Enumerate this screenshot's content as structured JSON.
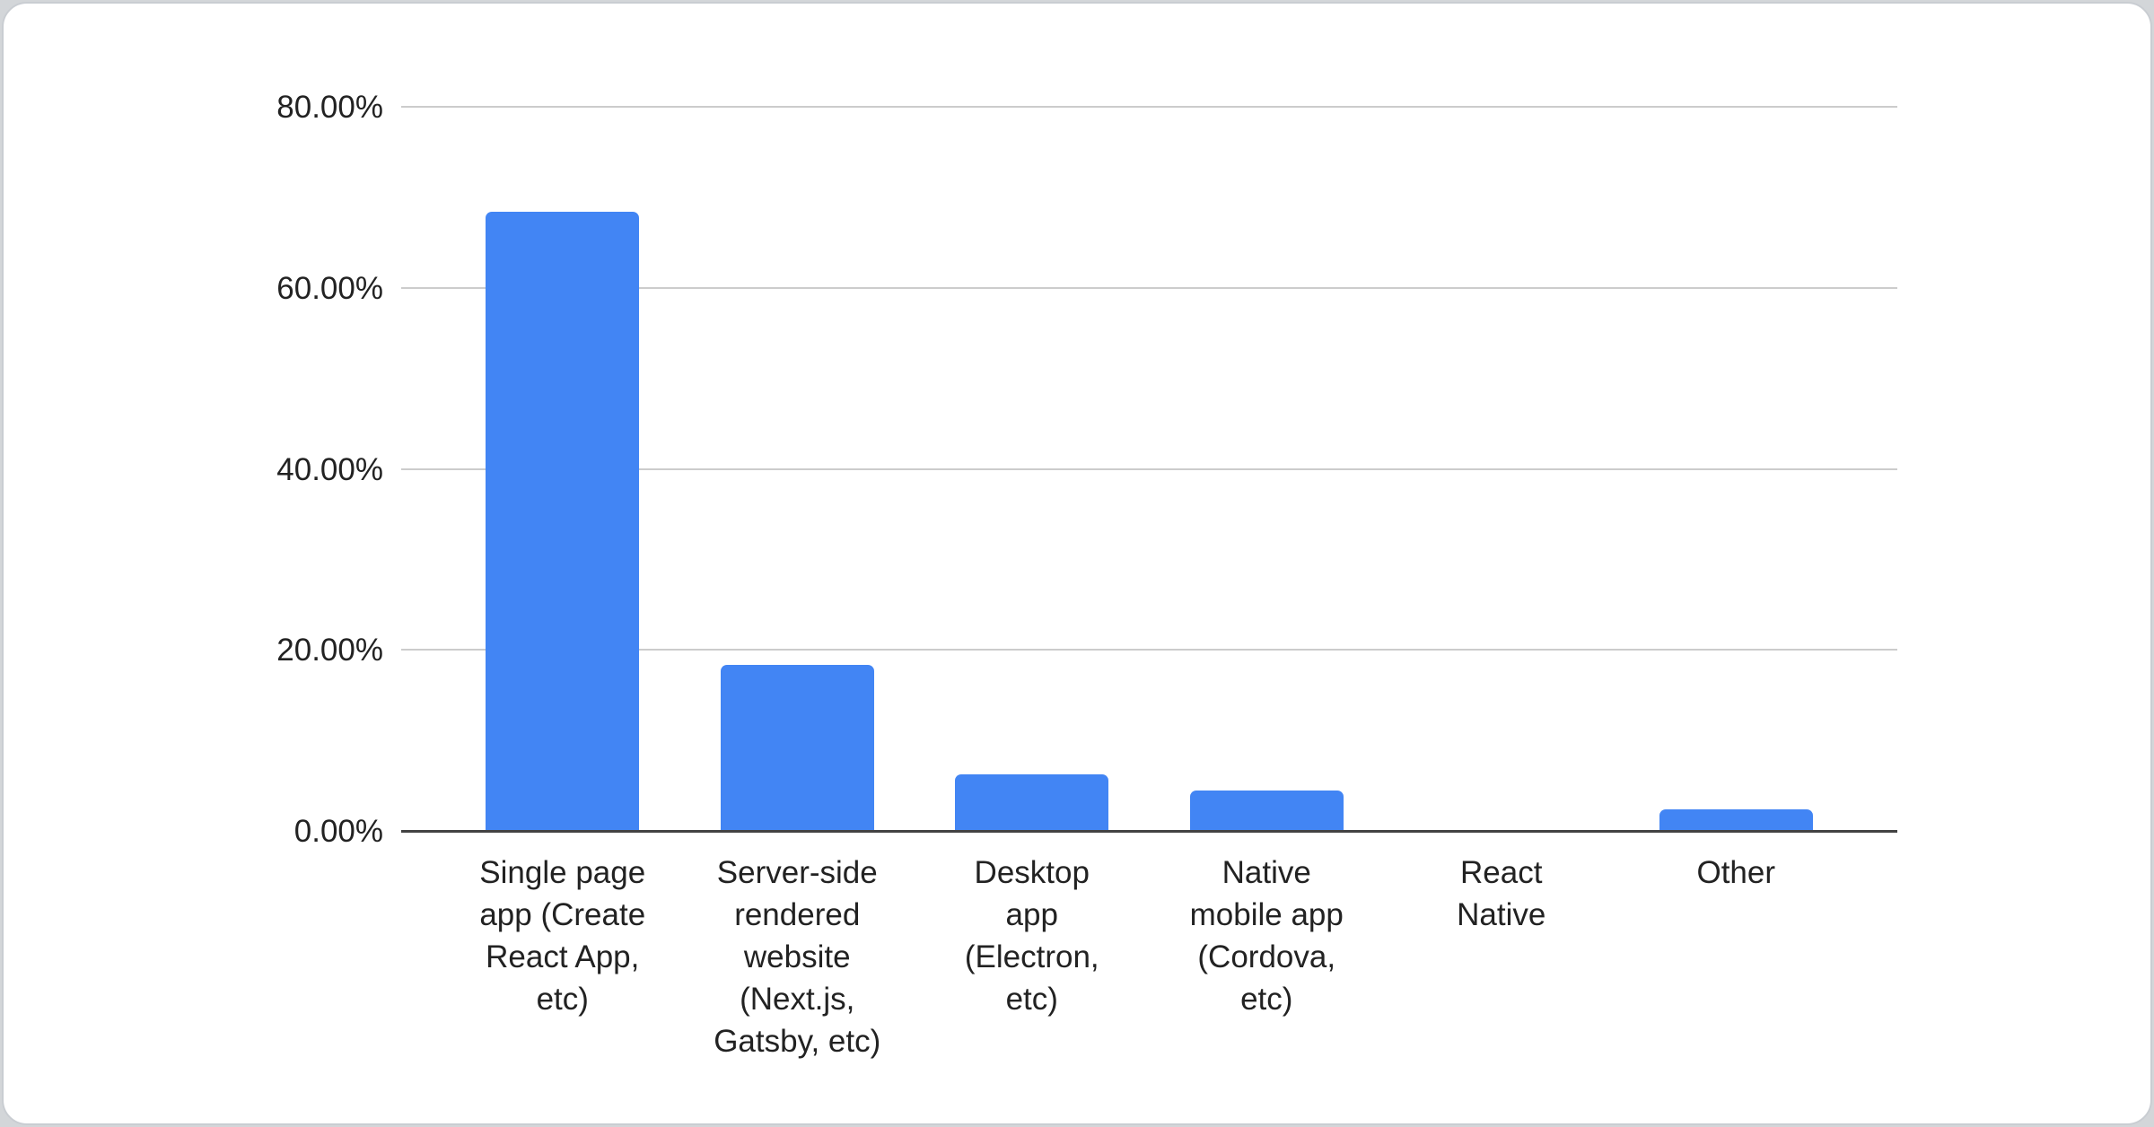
{
  "chart_data": {
    "type": "bar",
    "title": "",
    "xlabel": "",
    "ylabel": "",
    "categories": [
      "Single page app (Create React App, etc)",
      "Server-side rendered website (Next.js, Gatsby, etc)",
      "Desktop app (Electron, etc)",
      "Native mobile app (Cordova, etc)",
      "React Native",
      "Other"
    ],
    "category_display_labels": [
      "Single page\napp (Create\nReact App,\netc)",
      "Server-side\nrendered\nwebsite\n(Next.js,\nGatsby, etc)",
      "Desktop\napp\n(Electron,\netc)",
      "Native\nmobile app\n(Cordova,\netc)",
      "React\nNative",
      "Other"
    ],
    "category_slugs": [
      "single-page-app",
      "server-side-rendered-website",
      "desktop-app",
      "native-mobile-app",
      "react-native",
      "other"
    ],
    "values": [
      68.4,
      18.3,
      6.2,
      4.5,
      0,
      2.4
    ],
    "value_unit": "%",
    "ylim": [
      0,
      80
    ],
    "yticks": [
      {
        "value": 0,
        "label": "0.00%"
      },
      {
        "value": 20,
        "label": "20.00%"
      },
      {
        "value": 40,
        "label": "40.00%"
      },
      {
        "value": 60,
        "label": "60.00%"
      },
      {
        "value": 80,
        "label": "80.00%"
      }
    ],
    "grid": true,
    "legend": "none",
    "colors": {
      "bar": "#4285f4",
      "gridline": "#cccccc",
      "axis_line": "#424242",
      "label_text": "#222222",
      "card_background": "#ffffff",
      "card_border": "#c9cdd2",
      "page_background": "#d3d6d9"
    }
  }
}
